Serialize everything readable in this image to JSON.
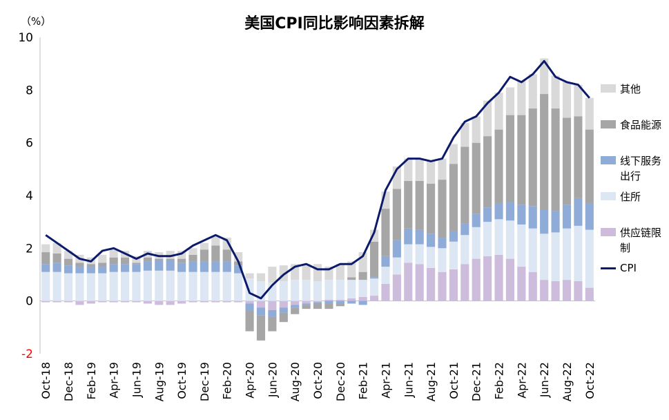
{
  "chart_data": {
    "type": "bar",
    "title": "美国CPI同比影响因素拆解",
    "unit_label": "（%）",
    "ylim": [
      -2,
      10
    ],
    "yticks": [
      -2,
      0,
      2,
      4,
      6,
      8,
      10
    ],
    "stacked": true,
    "categories": [
      "Oct-18",
      "Nov-18",
      "Dec-18",
      "Jan-19",
      "Feb-19",
      "Mar-19",
      "Apr-19",
      "May-19",
      "Jun-19",
      "Jul-19",
      "Aug-19",
      "Sep-19",
      "Oct-19",
      "Nov-19",
      "Dec-19",
      "Jan-20",
      "Feb-20",
      "Mar-20",
      "Apr-20",
      "May-20",
      "Jun-20",
      "Jul-20",
      "Aug-20",
      "Sep-20",
      "Oct-20",
      "Nov-20",
      "Dec-20",
      "Jan-21",
      "Feb-21",
      "Mar-21",
      "Apr-21",
      "May-21",
      "Jun-21",
      "Jul-21",
      "Aug-21",
      "Sep-21",
      "Oct-21",
      "Nov-21",
      "Dec-21",
      "Jan-22",
      "Feb-22",
      "Mar-22",
      "Apr-22",
      "May-22",
      "Jun-22",
      "Jul-22",
      "Aug-22",
      "Sep-22",
      "Oct-22"
    ],
    "tick_labels": [
      "Oct-18",
      "Dec-18",
      "Feb-19",
      "Apr-19",
      "Jun-19",
      "Aug-19",
      "Oct-19",
      "Dec-19",
      "Feb-20",
      "Apr-20",
      "Jun-20",
      "Aug-20",
      "Oct-20",
      "Dec-20",
      "Feb-21",
      "Apr-21",
      "Jun-21",
      "Aug-21",
      "Oct-21",
      "Dec-21",
      "Feb-22",
      "Apr-22",
      "Jun-22",
      "Aug-22",
      "Oct-22"
    ],
    "series": [
      {
        "name": "供应链限制",
        "color": "#cdbcdc",
        "values": [
          -0.05,
          -0.05,
          -0.05,
          -0.15,
          -0.1,
          -0.05,
          -0.05,
          -0.05,
          -0.05,
          -0.1,
          -0.15,
          -0.15,
          -0.1,
          -0.05,
          -0.05,
          -0.05,
          -0.05,
          -0.05,
          -0.1,
          -0.25,
          -0.35,
          -0.25,
          -0.15,
          -0.1,
          -0.05,
          0.05,
          0.05,
          0.1,
          0.15,
          0.2,
          0.65,
          1.0,
          1.45,
          1.4,
          1.25,
          1.1,
          1.2,
          1.4,
          1.6,
          1.7,
          1.75,
          1.6,
          1.3,
          1.1,
          0.8,
          0.75,
          0.8,
          0.75,
          0.5
        ]
      },
      {
        "name": "住所",
        "color": "#dde7f3",
        "values": [
          1.1,
          1.1,
          1.05,
          1.05,
          1.05,
          1.05,
          1.1,
          1.1,
          1.1,
          1.15,
          1.15,
          1.15,
          1.1,
          1.1,
          1.1,
          1.1,
          1.1,
          1.05,
          0.85,
          0.75,
          0.7,
          0.75,
          0.8,
          0.8,
          0.75,
          0.75,
          0.75,
          0.7,
          0.65,
          0.65,
          0.65,
          0.65,
          0.7,
          0.75,
          0.8,
          0.9,
          1.05,
          1.1,
          1.2,
          1.3,
          1.35,
          1.45,
          1.6,
          1.65,
          1.75,
          1.85,
          1.95,
          2.1,
          2.2
        ]
      },
      {
        "name": "线下服务出行",
        "color": "#8fabd8",
        "values": [
          0.3,
          0.35,
          0.3,
          0.25,
          0.25,
          0.25,
          0.3,
          0.3,
          0.3,
          0.35,
          0.4,
          0.4,
          0.35,
          0.4,
          0.4,
          0.4,
          0.4,
          0.3,
          -0.25,
          -0.3,
          -0.25,
          -0.2,
          -0.1,
          -0.05,
          -0.05,
          -0.1,
          -0.1,
          -0.1,
          -0.15,
          0.05,
          0.4,
          0.65,
          0.6,
          0.55,
          0.5,
          0.4,
          0.4,
          0.45,
          0.5,
          0.55,
          0.6,
          0.7,
          0.75,
          0.85,
          0.9,
          0.8,
          0.9,
          1.05,
          1.0
        ]
      },
      {
        "name": "食品能源",
        "color": "#a6a6a6",
        "values": [
          0.45,
          0.35,
          0.25,
          0.15,
          0.1,
          0.15,
          0.25,
          0.25,
          0.05,
          0.15,
          0.05,
          0.05,
          0.15,
          0.25,
          0.45,
          0.6,
          0.45,
          0.15,
          -0.8,
          -0.95,
          -0.55,
          -0.35,
          -0.25,
          -0.15,
          -0.2,
          -0.2,
          -0.1,
          0.1,
          0.3,
          1.35,
          1.8,
          1.95,
          1.8,
          1.85,
          1.9,
          2.2,
          2.55,
          2.9,
          2.7,
          2.7,
          2.8,
          3.3,
          3.4,
          3.7,
          4.4,
          3.9,
          3.3,
          3.1,
          2.8
        ]
      },
      {
        "name": "其他",
        "color": "#d9d9d9",
        "values": [
          0.3,
          0.4,
          0.3,
          0.3,
          0.25,
          0.3,
          0.3,
          0.25,
          0.25,
          0.25,
          0.25,
          0.3,
          0.3,
          0.25,
          0.25,
          0.35,
          0.45,
          0.35,
          0.2,
          0.3,
          0.6,
          0.6,
          0.6,
          0.6,
          0.65,
          0.5,
          0.6,
          0.6,
          0.75,
          0.45,
          0.65,
          0.85,
          0.85,
          0.85,
          0.85,
          0.8,
          0.75,
          0.9,
          1.0,
          1.35,
          1.4,
          1.05,
          1.3,
          1.3,
          1.35,
          1.25,
          1.35,
          1.2,
          1.2
        ]
      }
    ],
    "line": {
      "name": "CPI",
      "color": "#0c1a6b",
      "values": [
        2.5,
        2.2,
        1.9,
        1.6,
        1.5,
        1.9,
        2.0,
        1.8,
        1.6,
        1.8,
        1.7,
        1.7,
        1.8,
        2.1,
        2.3,
        2.5,
        2.3,
        1.5,
        0.3,
        0.1,
        0.6,
        1.0,
        1.3,
        1.4,
        1.2,
        1.2,
        1.4,
        1.4,
        1.7,
        2.6,
        4.2,
        5.0,
        5.4,
        5.4,
        5.3,
        5.4,
        6.2,
        6.8,
        7.0,
        7.5,
        7.9,
        8.5,
        8.3,
        8.6,
        9.1,
        8.5,
        8.3,
        8.2,
        7.7
      ]
    }
  },
  "legend": [
    {
      "label": "其他",
      "color": "#d9d9d9"
    },
    {
      "label": "食品能源",
      "color": "#a6a6a6"
    },
    {
      "label": "线下服务出行",
      "color": "#8fabd8"
    },
    {
      "label": "住所",
      "color": "#dde7f3"
    },
    {
      "label": "供应链限制",
      "color": "#cdbcdc"
    },
    {
      "label": "CPI",
      "color": "#0c1a6b",
      "type": "line"
    }
  ]
}
